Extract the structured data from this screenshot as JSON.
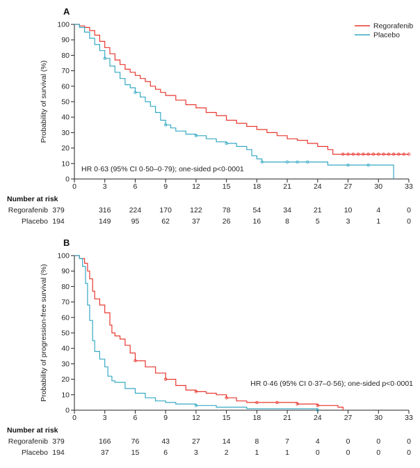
{
  "chart_data": [
    {
      "panel": "A",
      "type": "line",
      "ylabel": "Probability of survival (%)",
      "xlabel": "",
      "xlim": [
        0,
        33
      ],
      "ylim": [
        0,
        100
      ],
      "x_ticks": [
        0,
        3,
        6,
        9,
        12,
        15,
        18,
        21,
        24,
        27,
        30,
        33
      ],
      "y_ticks": [
        0,
        10,
        20,
        30,
        40,
        50,
        60,
        70,
        80,
        90,
        100
      ],
      "annotation": "HR 0·63 (95% CI 0·50–0·79); one-sided p<0·0001",
      "legend": {
        "position": "top-right",
        "entries": [
          "Regorafenib",
          "Placebo"
        ]
      },
      "series": [
        {
          "name": "Regorafenib",
          "color": "#e8372f",
          "points": [
            [
              0,
              100
            ],
            [
              0.5,
              99
            ],
            [
              1,
              98
            ],
            [
              1.5,
              96
            ],
            [
              2,
              93
            ],
            [
              2.5,
              89
            ],
            [
              3,
              85
            ],
            [
              3.5,
              81
            ],
            [
              4,
              77
            ],
            [
              4.5,
              74
            ],
            [
              5,
              71
            ],
            [
              5.5,
              69
            ],
            [
              6,
              67
            ],
            [
              6.5,
              65
            ],
            [
              7,
              63
            ],
            [
              7.5,
              60
            ],
            [
              8,
              58
            ],
            [
              8.5,
              56
            ],
            [
              9,
              54
            ],
            [
              10,
              51
            ],
            [
              11,
              48
            ],
            [
              12,
              46
            ],
            [
              13,
              43
            ],
            [
              14,
              41
            ],
            [
              15,
              38
            ],
            [
              16,
              36
            ],
            [
              17,
              34
            ],
            [
              18,
              32
            ],
            [
              19,
              30
            ],
            [
              20,
              28
            ],
            [
              21,
              26
            ],
            [
              22,
              25
            ],
            [
              23,
              23
            ],
            [
              24,
              21
            ],
            [
              25,
              19
            ],
            [
              25.5,
              16
            ],
            [
              26,
              16
            ],
            [
              33,
              16
            ]
          ],
          "censor_x": [
            26.5,
            27,
            27.5,
            28,
            28.5,
            29,
            29.5,
            30,
            30.5,
            31,
            31.5,
            32,
            32.5,
            33
          ]
        },
        {
          "name": "Placebo",
          "color": "#35a9c4",
          "points": [
            [
              0,
              100
            ],
            [
              0.5,
              98
            ],
            [
              1,
              95
            ],
            [
              1.5,
              91
            ],
            [
              2,
              87
            ],
            [
              2.5,
              83
            ],
            [
              3,
              78
            ],
            [
              3.5,
              73
            ],
            [
              4,
              69
            ],
            [
              4.5,
              65
            ],
            [
              5,
              61
            ],
            [
              5.5,
              59
            ],
            [
              6,
              56
            ],
            [
              6.5,
              53
            ],
            [
              7,
              50
            ],
            [
              7.5,
              47
            ],
            [
              8,
              43
            ],
            [
              8.5,
              38
            ],
            [
              9,
              35
            ],
            [
              9.5,
              33
            ],
            [
              10,
              31
            ],
            [
              11,
              29
            ],
            [
              12,
              28
            ],
            [
              13,
              26
            ],
            [
              14,
              24
            ],
            [
              15,
              23
            ],
            [
              16,
              21
            ],
            [
              17,
              19
            ],
            [
              17.5,
              15
            ],
            [
              18,
              13
            ],
            [
              18.5,
              11
            ],
            [
              20,
              11
            ],
            [
              24,
              11
            ],
            [
              25,
              9
            ],
            [
              31.5,
              9
            ],
            [
              31.5,
              0
            ]
          ],
          "censor_x": [
            3,
            6,
            9,
            12,
            15,
            18.5,
            21,
            22,
            23,
            27,
            29
          ]
        }
      ],
      "number_at_risk": {
        "heading": "Number at risk",
        "rows": [
          {
            "label": "Regorafenib",
            "values": [
              "379",
              "316",
              "224",
              "170",
              "122",
              "78",
              "54",
              "34",
              "21",
              "10",
              "4",
              "0"
            ]
          },
          {
            "label": "Placebo",
            "values": [
              "194",
              "149",
              "95",
              "62",
              "37",
              "26",
              "16",
              "8",
              "5",
              "3",
              "1",
              "0"
            ]
          }
        ]
      }
    },
    {
      "panel": "B",
      "type": "line",
      "ylabel": "Probability of progression-free survival (%)",
      "xlabel": "",
      "xlim": [
        0,
        33
      ],
      "ylim": [
        0,
        100
      ],
      "x_ticks": [
        0,
        3,
        6,
        9,
        12,
        15,
        18,
        21,
        24,
        27,
        30,
        33
      ],
      "y_ticks": [
        0,
        10,
        20,
        30,
        40,
        50,
        60,
        70,
        80,
        90,
        100
      ],
      "annotation": "HR 0·46 (95% CI 0·37–0·56); one-sided p<0·0001",
      "series": [
        {
          "name": "Regorafenib",
          "color": "#e8372f",
          "points": [
            [
              0,
              100
            ],
            [
              0.5,
              98
            ],
            [
              1,
              95
            ],
            [
              1.3,
              90
            ],
            [
              1.5,
              85
            ],
            [
              1.8,
              77
            ],
            [
              2,
              72
            ],
            [
              2.5,
              68
            ],
            [
              3,
              63
            ],
            [
              3.5,
              55
            ],
            [
              3.7,
              50
            ],
            [
              4,
              48
            ],
            [
              4.5,
              46
            ],
            [
              5,
              42
            ],
            [
              5.5,
              37
            ],
            [
              6,
              32
            ],
            [
              7,
              28
            ],
            [
              8,
              24
            ],
            [
              9,
              20
            ],
            [
              10,
              16
            ],
            [
              11,
              13
            ],
            [
              12,
              12
            ],
            [
              13,
              11
            ],
            [
              14,
              10
            ],
            [
              15,
              8
            ],
            [
              16,
              6
            ],
            [
              17,
              5
            ],
            [
              18,
              5
            ],
            [
              21,
              5
            ],
            [
              22,
              4
            ],
            [
              24,
              3
            ],
            [
              25,
              3
            ],
            [
              26,
              2
            ],
            [
              26.5,
              0
            ]
          ],
          "censor_x": [
            6,
            9,
            12,
            15,
            18,
            20,
            22,
            24
          ]
        },
        {
          "name": "Placebo",
          "color": "#35a9c4",
          "points": [
            [
              0,
              100
            ],
            [
              0.5,
              98
            ],
            [
              0.8,
              93
            ],
            [
              1.1,
              82
            ],
            [
              1.3,
              68
            ],
            [
              1.5,
              58
            ],
            [
              1.8,
              45
            ],
            [
              2,
              38
            ],
            [
              2.5,
              33
            ],
            [
              3,
              28
            ],
            [
              3.3,
              22
            ],
            [
              3.7,
              19
            ],
            [
              4,
              18
            ],
            [
              5,
              14
            ],
            [
              6,
              11
            ],
            [
              7,
              8
            ],
            [
              8,
              6
            ],
            [
              9,
              5
            ],
            [
              10,
              4
            ],
            [
              12,
              3
            ],
            [
              14,
              2
            ],
            [
              15,
              2
            ],
            [
              17,
              1
            ],
            [
              18,
              1
            ],
            [
              24,
              0
            ]
          ],
          "censor_x": [
            12,
            24
          ]
        }
      ],
      "number_at_risk": {
        "heading": "Number at risk",
        "rows": [
          {
            "label": "Regorafenib",
            "values": [
              "379",
              "166",
              "76",
              "43",
              "27",
              "14",
              "8",
              "7",
              "4",
              "0",
              "0",
              "0"
            ]
          },
          {
            "label": "Placebo",
            "values": [
              "194",
              "37",
              "15",
              "6",
              "3",
              "2",
              "1",
              "1",
              "0",
              "0",
              "0",
              "0"
            ]
          }
        ]
      }
    }
  ]
}
